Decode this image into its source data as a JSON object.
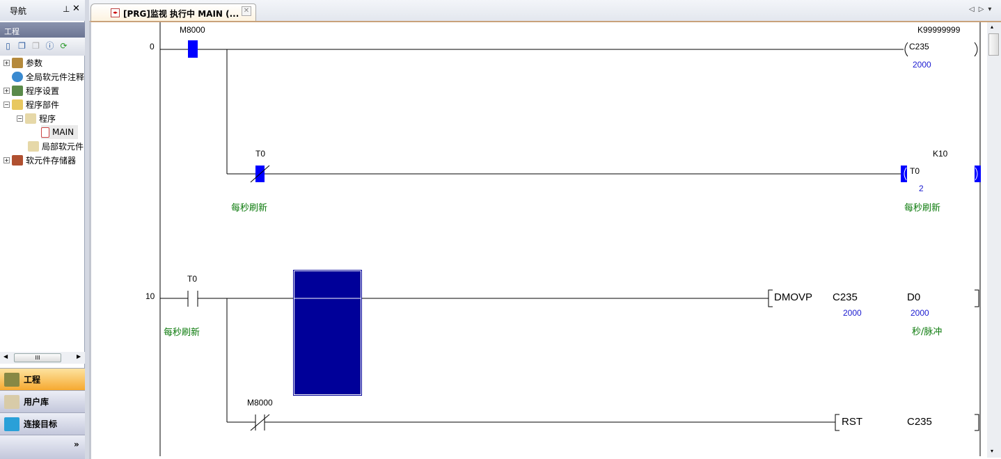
{
  "nav": {
    "title": "导航",
    "pin": "ᵖ",
    "close": "✕",
    "section": "工程",
    "toolbar": [
      "new-item-icon",
      "copy-icon",
      "paste-icon",
      "properties-icon",
      "refresh-icon"
    ],
    "tree": [
      {
        "label": "参数",
        "exp": "+"
      },
      {
        "label": "全局软元件注释",
        "exp": ""
      },
      {
        "label": "程序设置",
        "exp": "+"
      },
      {
        "label": "程序部件",
        "exp": "−"
      },
      {
        "label": "程序",
        "exp": "−"
      },
      {
        "label": "MAIN",
        "exp": ""
      },
      {
        "label": "局部软元件",
        "exp": ""
      },
      {
        "label": "软元件存储器",
        "exp": "+"
      }
    ],
    "scroll_thumb": "III",
    "buttons": [
      {
        "label": "工程",
        "active": true
      },
      {
        "label": "用户库"
      },
      {
        "label": "连接目标"
      }
    ],
    "more": "»"
  },
  "tab": {
    "title": "[PRG]监视 执行中 MAIN (...",
    "close": "✕",
    "nav": "◁▷▾"
  },
  "ladder": {
    "step0": "0",
    "step10": "10",
    "m8000_a": "M8000",
    "k_c235": "K99999999",
    "coil_c235": "C235",
    "c235_val": "2000",
    "t0_nc": "T0",
    "t0_nc_comment": "每秒刷新",
    "k_t0": "K10",
    "coil_t0": "T0",
    "t0_val": "2",
    "t0_comment": "每秒刷新",
    "t0_no": "T0",
    "t0_no_comment": "每秒刷新",
    "dmovp": "DMOVP",
    "dmovp_src": "C235",
    "dmovp_src_val": "2000",
    "dmovp_dst": "D0",
    "dmovp_dst_val": "2000",
    "dmovp_comment": "秒/脉冲",
    "m8000_b": "M8000",
    "rst": "RST",
    "rst_dev": "C235"
  },
  "colors": {
    "energized": "#0000ff",
    "selection": "#000099",
    "comment": "#0b7a0b",
    "value": "#1a1ad0"
  }
}
